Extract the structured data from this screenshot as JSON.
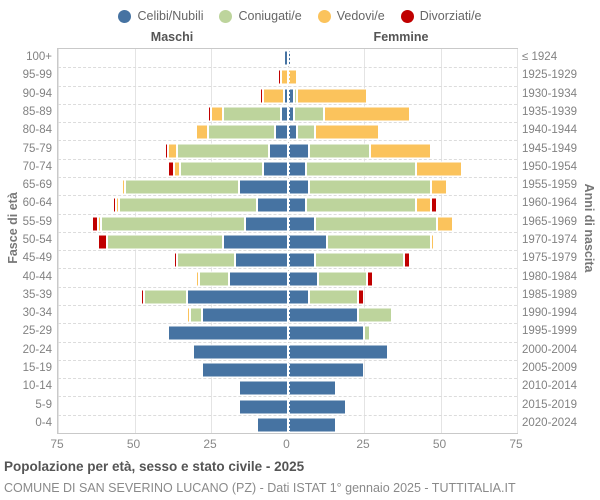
{
  "chart_data": {
    "type": "bar",
    "variant": "population-pyramid-stacked",
    "title": "Popolazione per età, sesso e stato civile - 2025",
    "subtitle": "COMUNE DI SAN SEVERINO LUCANO (PZ) - Dati ISTAT 1° gennaio 2025 - TUTTITALIA.IT",
    "series_labels": {
      "male": "Maschi",
      "female": "Femmine"
    },
    "y_axis_left_title": "Fasce di età",
    "y_axis_right_title": "Anni di nascita",
    "x_max": 75,
    "x_tick_labels": [
      "75",
      "50",
      "25",
      "0",
      "25",
      "50",
      "75"
    ],
    "x_tick_values": [
      -75,
      -50,
      -25,
      0,
      25,
      50,
      75
    ],
    "grid": true,
    "legend_position": "top",
    "legend": [
      {
        "key": "celibi",
        "label": "Celibi/Nubili",
        "color": "#4673a2"
      },
      {
        "key": "coniugati",
        "label": "Coniugati/e",
        "color": "#bdd49c"
      },
      {
        "key": "vedovi",
        "label": "Vedovi/e",
        "color": "#fbc35c"
      },
      {
        "key": "divorziati",
        "label": "Divorziati/e",
        "color": "#c00000"
      }
    ],
    "statuses": [
      "celibi",
      "coniugati",
      "vedovi",
      "divorziati"
    ],
    "rows": [
      {
        "age": "100+",
        "birth": "≤ 1924",
        "male": [
          1,
          0,
          0,
          0
        ],
        "female": [
          1,
          0,
          0,
          0
        ]
      },
      {
        "age": "95-99",
        "birth": "1925-1929",
        "male": [
          0,
          0,
          2,
          1
        ],
        "female": [
          0,
          0,
          3,
          0
        ]
      },
      {
        "age": "90-94",
        "birth": "1930-1934",
        "male": [
          1,
          0,
          7,
          1
        ],
        "female": [
          2,
          1,
          23,
          0
        ]
      },
      {
        "age": "85-89",
        "birth": "1935-1939",
        "male": [
          2,
          19,
          4,
          1
        ],
        "female": [
          2,
          10,
          28,
          0
        ]
      },
      {
        "age": "80-84",
        "birth": "1940-1944",
        "male": [
          4,
          22,
          4,
          0
        ],
        "female": [
          3,
          6,
          21,
          0
        ]
      },
      {
        "age": "75-79",
        "birth": "1945-1949",
        "male": [
          6,
          30,
          3,
          1
        ],
        "female": [
          7,
          20,
          20,
          0
        ]
      },
      {
        "age": "70-74",
        "birth": "1950-1954",
        "male": [
          8,
          27,
          2,
          2
        ],
        "female": [
          6,
          36,
          15,
          0
        ]
      },
      {
        "age": "65-69",
        "birth": "1955-1959",
        "male": [
          16,
          37,
          1,
          0
        ],
        "female": [
          7,
          40,
          5,
          0
        ]
      },
      {
        "age": "60-64",
        "birth": "1960-1964",
        "male": [
          10,
          45,
          1,
          1
        ],
        "female": [
          6,
          36,
          5,
          2
        ]
      },
      {
        "age": "55-59",
        "birth": "1965-1969",
        "male": [
          14,
          47,
          1,
          2
        ],
        "female": [
          9,
          40,
          5,
          0
        ]
      },
      {
        "age": "50-54",
        "birth": "1970-1974",
        "male": [
          21,
          38,
          0,
          3
        ],
        "female": [
          13,
          34,
          1,
          0
        ]
      },
      {
        "age": "45-49",
        "birth": "1975-1979",
        "male": [
          17,
          19,
          0,
          1
        ],
        "female": [
          9,
          29,
          0,
          2
        ]
      },
      {
        "age": "40-44",
        "birth": "1980-1984",
        "male": [
          19,
          10,
          1,
          0
        ],
        "female": [
          10,
          16,
          0,
          2
        ]
      },
      {
        "age": "35-39",
        "birth": "1985-1989",
        "male": [
          33,
          14,
          0,
          1
        ],
        "female": [
          7,
          16,
          0,
          2
        ]
      },
      {
        "age": "30-34",
        "birth": "1990-1994",
        "male": [
          28,
          4,
          1,
          0
        ],
        "female": [
          23,
          11,
          0,
          0
        ]
      },
      {
        "age": "25-29",
        "birth": "1995-1999",
        "male": [
          39,
          0,
          0,
          0
        ],
        "female": [
          25,
          2,
          0,
          0
        ]
      },
      {
        "age": "20-24",
        "birth": "2000-2004",
        "male": [
          31,
          0,
          0,
          0
        ],
        "female": [
          33,
          0,
          0,
          0
        ]
      },
      {
        "age": "15-19",
        "birth": "2005-2009",
        "male": [
          28,
          0,
          0,
          0
        ],
        "female": [
          25,
          0,
          0,
          0
        ]
      },
      {
        "age": "10-14",
        "birth": "2010-2014",
        "male": [
          16,
          0,
          0,
          0
        ],
        "female": [
          16,
          0,
          0,
          0
        ]
      },
      {
        "age": "5-9",
        "birth": "2015-2019",
        "male": [
          16,
          0,
          0,
          0
        ],
        "female": [
          19,
          0,
          0,
          0
        ]
      },
      {
        "age": "0-4",
        "birth": "2020-2024",
        "male": [
          10,
          0,
          0,
          0
        ],
        "female": [
          16,
          0,
          0,
          0
        ]
      }
    ]
  }
}
